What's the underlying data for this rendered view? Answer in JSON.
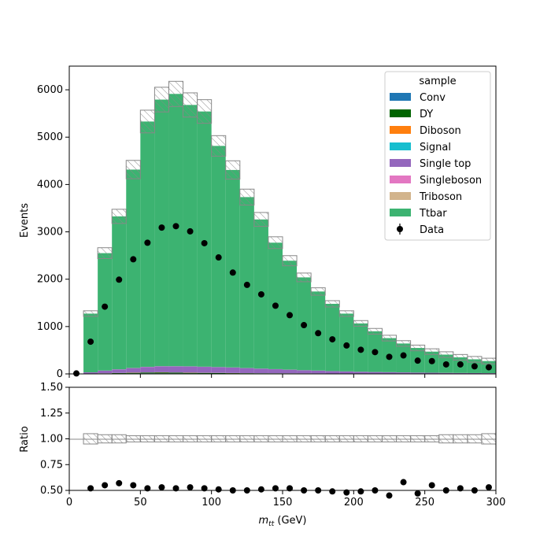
{
  "chart_data": [
    {
      "type": "bar",
      "panel": "main",
      "stacked": true,
      "ylabel": "Events",
      "xlim": [
        0,
        300
      ],
      "ylim": [
        0,
        6500
      ],
      "yticks": [
        "0",
        "1000",
        "2000",
        "3000",
        "4000",
        "5000",
        "6000"
      ],
      "x": [
        5,
        15,
        25,
        35,
        45,
        55,
        65,
        75,
        85,
        95,
        105,
        115,
        125,
        135,
        145,
        155,
        165,
        175,
        185,
        195,
        205,
        215,
        225,
        235,
        245,
        255,
        265,
        275,
        285,
        295
      ],
      "bin_edges": [
        0,
        10,
        20,
        30,
        40,
        50,
        60,
        70,
        80,
        90,
        100,
        110,
        120,
        130,
        140,
        150,
        160,
        170,
        180,
        190,
        200,
        210,
        220,
        230,
        240,
        250,
        260,
        270,
        280,
        290,
        300
      ],
      "series": [
        {
          "name": "Conv",
          "color": "#1f77b4",
          "values": [
            0,
            2,
            5,
            8,
            10,
            12,
            12,
            11,
            10,
            9,
            8,
            7,
            6,
            5,
            5,
            4,
            4,
            3,
            3,
            3,
            2,
            2,
            2,
            2,
            1,
            1,
            1,
            1,
            1,
            1
          ]
        },
        {
          "name": "DY",
          "color": "#006400",
          "values": [
            0,
            3,
            5,
            8,
            12,
            15,
            18,
            14,
            12,
            10,
            9,
            8,
            7,
            6,
            5,
            5,
            4,
            4,
            3,
            3,
            3,
            2,
            2,
            2,
            2,
            2,
            1,
            1,
            1,
            1
          ]
        },
        {
          "name": "Diboson",
          "color": "#ff7f0e",
          "values": [
            0,
            1,
            2,
            2,
            3,
            3,
            3,
            3,
            3,
            3,
            3,
            2,
            2,
            2,
            2,
            2,
            2,
            2,
            1,
            1,
            1,
            1,
            1,
            1,
            1,
            1,
            1,
            1,
            1,
            1
          ]
        },
        {
          "name": "Signal",
          "color": "#17becf",
          "values": [
            0,
            1,
            1,
            2,
            2,
            2,
            2,
            2,
            2,
            2,
            2,
            2,
            2,
            2,
            2,
            2,
            1,
            1,
            1,
            1,
            1,
            1,
            1,
            1,
            1,
            1,
            1,
            1,
            1,
            1
          ]
        },
        {
          "name": "Single top",
          "color": "#9467bd",
          "values": [
            0,
            25,
            55,
            75,
            95,
            115,
            125,
            130,
            130,
            125,
            120,
            115,
            105,
            95,
            85,
            75,
            65,
            58,
            50,
            44,
            38,
            33,
            29,
            25,
            22,
            19,
            17,
            15,
            13,
            11
          ]
        },
        {
          "name": "Singleboson",
          "color": "#e377c2",
          "values": [
            0,
            1,
            2,
            2,
            3,
            3,
            3,
            3,
            3,
            3,
            3,
            3,
            2,
            2,
            2,
            2,
            2,
            2,
            2,
            1,
            1,
            1,
            1,
            1,
            1,
            1,
            1,
            1,
            1,
            1
          ]
        },
        {
          "name": "Triboson",
          "color": "#d2b48c",
          "values": [
            0,
            0,
            0,
            0,
            0,
            0,
            0,
            0,
            0,
            0,
            0,
            0,
            0,
            0,
            0,
            0,
            0,
            0,
            0,
            0,
            0,
            0,
            0,
            0,
            0,
            0,
            0,
            0,
            0,
            0
          ]
        },
        {
          "name": "Ttbar",
          "color": "#3cb371",
          "values": [
            0,
            1240,
            2480,
            3230,
            4190,
            5180,
            5630,
            5750,
            5520,
            5390,
            4670,
            4170,
            3610,
            3150,
            2670,
            2300,
            1960,
            1670,
            1420,
            1220,
            1020,
            860,
            720,
            610,
            520,
            445,
            385,
            330,
            290,
            255
          ]
        }
      ],
      "data": {
        "name": "Data",
        "values": [
          10,
          680,
          1420,
          1990,
          2420,
          2770,
          3090,
          3120,
          3010,
          2760,
          2460,
          2140,
          1880,
          1680,
          1440,
          1240,
          1030,
          860,
          730,
          600,
          510,
          460,
          360,
          390,
          280,
          270,
          200,
          200,
          160,
          140
        ]
      },
      "legend": {
        "title": "sample",
        "placement": "top-right"
      }
    },
    {
      "type": "scatter",
      "panel": "ratio",
      "xlabel": "m_tt (GeV)",
      "ylabel": "Ratio",
      "xlim": [
        0,
        300
      ],
      "ylim": [
        0.5,
        1.5
      ],
      "yticks": [
        "0.50",
        "0.75",
        "1.00",
        "1.25",
        "1.50"
      ],
      "xticks": [
        "0",
        "50",
        "100",
        "150",
        "200",
        "250",
        "300"
      ],
      "x": [
        15,
        25,
        35,
        45,
        55,
        65,
        75,
        85,
        95,
        105,
        115,
        125,
        135,
        145,
        155,
        165,
        175,
        185,
        195,
        205,
        215,
        225,
        235,
        245,
        255,
        265,
        275,
        285,
        295
      ],
      "values": [
        0.52,
        0.55,
        0.57,
        0.55,
        0.52,
        0.53,
        0.52,
        0.53,
        0.52,
        0.51,
        0.5,
        0.5,
        0.51,
        0.52,
        0.52,
        0.5,
        0.5,
        0.49,
        0.48,
        0.49,
        0.5,
        0.45,
        0.58,
        0.47,
        0.55,
        0.5,
        0.52,
        0.5,
        0.53
      ],
      "uncertainty_band": [
        0.05,
        0.04,
        0.04,
        0.03,
        0.03,
        0.03,
        0.03,
        0.03,
        0.03,
        0.03,
        0.03,
        0.03,
        0.03,
        0.03,
        0.03,
        0.03,
        0.03,
        0.03,
        0.03,
        0.03,
        0.03,
        0.03,
        0.03,
        0.03,
        0.03,
        0.04,
        0.04,
        0.04,
        0.05
      ]
    }
  ],
  "axis_labels": {
    "x_main": "m",
    "x_sub": "tt",
    "x_unit": " (GeV)"
  }
}
